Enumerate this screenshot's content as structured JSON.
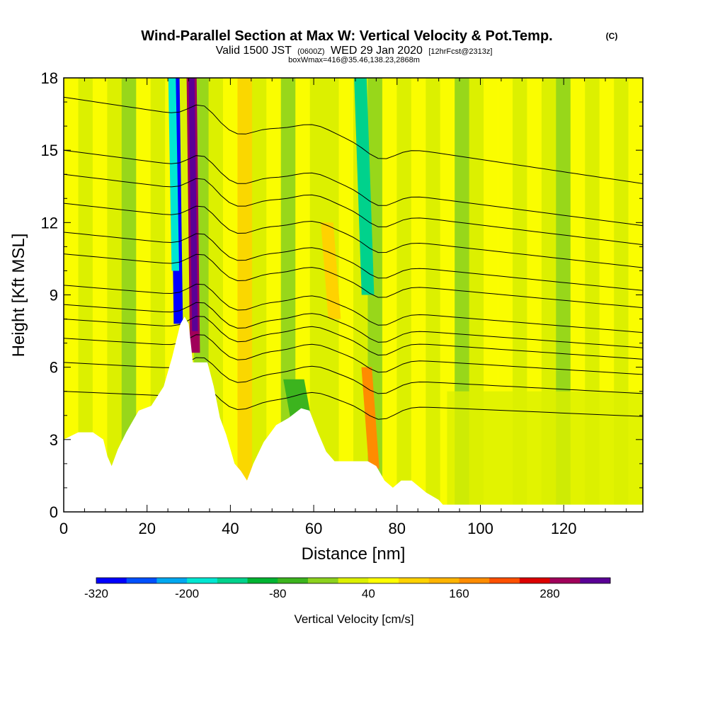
{
  "chart_data": {
    "type": "heatmap",
    "title": "Wind-Parallel Section at Max W: Vertical Velocity & Pot.Temp.",
    "title_mark": "(C)",
    "subtitle_parts": [
      "Valid 1500 JST",
      "(0600Z)",
      "WED 29 Jan 2020",
      "[12hrFcst@2313z]"
    ],
    "subtitle2": "boxWmax=416@35.46,138.23,2868m",
    "xlabel": "Distance [nm]",
    "ylabel": "Height [Kft MSL]",
    "xlim": [
      0,
      139
    ],
    "ylim": [
      0,
      18
    ],
    "x_ticks": [
      0,
      20,
      40,
      60,
      80,
      100,
      120
    ],
    "y_ticks": [
      0,
      3,
      6,
      9,
      12,
      15,
      18
    ],
    "grid": false,
    "colorbar": {
      "label": "Vertical Velocity [cm/s]",
      "levels": [
        -320,
        -280,
        -240,
        -200,
        -160,
        -120,
        -80,
        -40,
        0,
        40,
        80,
        120,
        160,
        200,
        240,
        280,
        320
      ],
      "labeled_ticks": [
        -320,
        -200,
        -80,
        40,
        160,
        280
      ],
      "colors": [
        "#0000ff",
        "#0050ff",
        "#00a8f0",
        "#00e6d2",
        "#00d28c",
        "#00b432",
        "#3cb41e",
        "#8cd21e",
        "#dcf000",
        "#ffff00",
        "#ffd200",
        "#ffb400",
        "#ff8c00",
        "#ff5000",
        "#dc0000",
        "#a0005a",
        "#5a0096"
      ]
    },
    "terrain_profile": {
      "x": [
        0,
        3.5,
        7,
        9.5,
        10.5,
        11.5,
        13,
        15,
        18,
        21,
        24,
        26,
        28,
        29,
        30,
        31,
        34.5,
        36,
        37.5,
        39,
        41,
        42.5,
        44,
        45.5,
        48,
        51,
        54,
        57,
        59,
        61,
        63,
        65,
        67,
        70,
        73,
        75,
        77,
        79,
        81,
        83.5,
        87,
        90,
        91,
        95,
        100,
        139
      ],
      "y": [
        3,
        3.3,
        3.3,
        3.0,
        2.3,
        1.9,
        2.6,
        3.3,
        4.2,
        4.4,
        5.2,
        6.4,
        7.8,
        8.1,
        7.8,
        6.2,
        6.2,
        5.2,
        3.9,
        3.2,
        2.0,
        1.7,
        1.3,
        2.0,
        2.9,
        3.6,
        3.9,
        4.3,
        4.2,
        3.3,
        2.5,
        2.1,
        2.1,
        2.1,
        2.1,
        1.9,
        1.3,
        1.0,
        1.3,
        1.3,
        0.8,
        0.5,
        0.3,
        0.3,
        0.3,
        0.3
      ]
    },
    "velocity_features": [
      {
        "x": 27.5,
        "w": 2.2,
        "y0": 7.8,
        "y1": 18,
        "value": -320
      },
      {
        "x": 26.8,
        "w": 1.8,
        "y0": 10.0,
        "y1": 18,
        "value": -200
      },
      {
        "x": 31.5,
        "w": 2.4,
        "y0": 6.6,
        "y1": 18,
        "value": 280
      },
      {
        "x": 31.5,
        "w": 1.4,
        "y0": 7.5,
        "y1": 18,
        "value": 320
      },
      {
        "x": 73,
        "w": 3.0,
        "y0": 9.0,
        "y1": 18,
        "value": -160
      },
      {
        "x": 74.5,
        "w": 2.5,
        "y0": 1.8,
        "y1": 6.0,
        "value": 160
      },
      {
        "x": 57,
        "w": 5.0,
        "y0": 3.8,
        "y1": 5.5,
        "value": -80
      },
      {
        "x": 65,
        "w": 3.0,
        "y0": 8.0,
        "y1": 12.0,
        "value": 80
      }
    ],
    "theta_contours": [
      {
        "label": "",
        "y_left": 17.2
      },
      {
        "label": "",
        "y_left": 15.0
      },
      {
        "label": "",
        "y_left": 14.0
      },
      {
        "label": "",
        "y_left": 12.8
      },
      {
        "label": "",
        "y_left": 11.6
      },
      {
        "label": "",
        "y_left": 10.7
      },
      {
        "label": "",
        "y_left": 9.4
      },
      {
        "label": "",
        "y_left": 8.6
      },
      {
        "label": "",
        "y_left": 8.0
      },
      {
        "label": "",
        "y_left": 7.2
      },
      {
        "label": "",
        "y_left": 6.2
      },
      {
        "label": "",
        "y_left": 5.0
      }
    ]
  }
}
